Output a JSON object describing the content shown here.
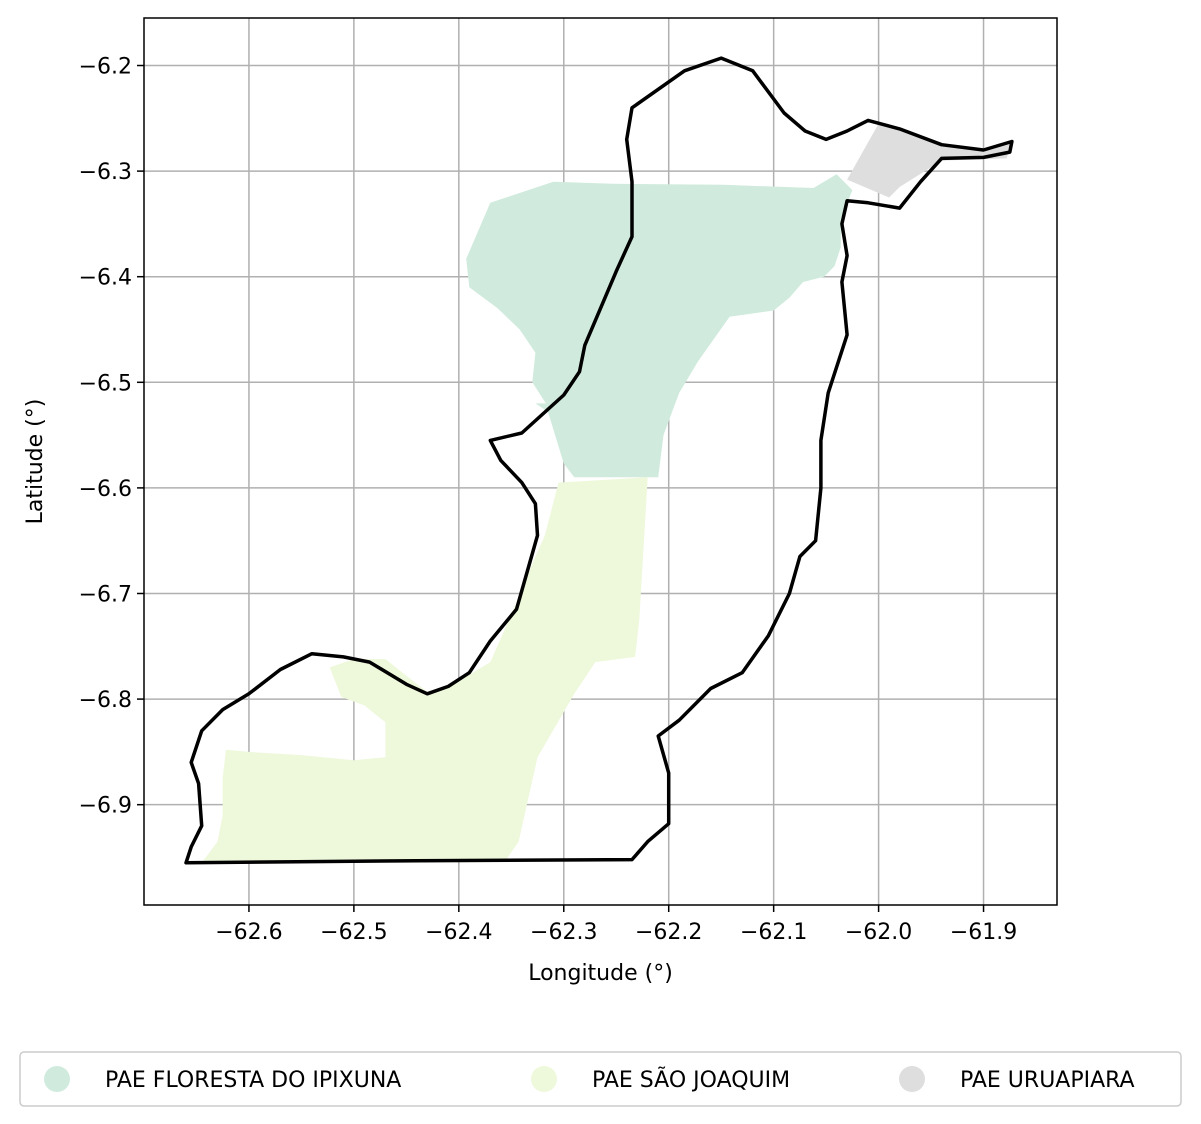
{
  "chart_data": {
    "type": "map",
    "xlabel": "Longitude (°)",
    "ylabel": "Latitude (°)",
    "xlim": [
      -62.7,
      -61.83
    ],
    "ylim": [
      -6.995,
      -6.155
    ],
    "xticks": [
      -62.6,
      -62.5,
      -62.4,
      -62.3,
      -62.2,
      -62.1,
      -62.0,
      -61.9
    ],
    "xtick_labels": [
      "−62.6",
      "−62.5",
      "−62.4",
      "−62.3",
      "−62.2",
      "−62.1",
      "−62.0",
      "−61.9"
    ],
    "yticks": [
      -6.2,
      -6.3,
      -6.4,
      -6.5,
      -6.6,
      -6.7,
      -6.8,
      -6.9
    ],
    "ytick_labels": [
      "−6.2",
      "−6.3",
      "−6.4",
      "−6.5",
      "−6.6",
      "−6.7",
      "−6.8",
      "−6.9"
    ],
    "grid": true,
    "legend_position": "bottom",
    "legend": [
      {
        "label": "PAE FLORESTA DO IPIXUNA",
        "color": "#d0ebdd"
      },
      {
        "label": "PAE SÃO JOAQUIM",
        "color": "#eef8db"
      },
      {
        "label": "PAE URUAPIARA",
        "color": "#dedede"
      }
    ],
    "regions": [
      {
        "name": "PAE FLORESTA DO IPIXUNA",
        "color": "#d0ebdd",
        "coords": [
          [
            -62.253,
            -6.312
          ],
          [
            -62.148,
            -6.313
          ],
          [
            -62.062,
            -6.316
          ],
          [
            -62.04,
            -6.303
          ],
          [
            -62.025,
            -6.318
          ],
          [
            -62.036,
            -6.345
          ],
          [
            -62.036,
            -6.372
          ],
          [
            -62.042,
            -6.39
          ],
          [
            -62.052,
            -6.4
          ],
          [
            -62.072,
            -6.405
          ],
          [
            -62.085,
            -6.42
          ],
          [
            -62.1,
            -6.432
          ],
          [
            -62.142,
            -6.438
          ],
          [
            -62.172,
            -6.48
          ],
          [
            -62.19,
            -6.51
          ],
          [
            -62.205,
            -6.55
          ],
          [
            -62.21,
            -6.59
          ],
          [
            -62.29,
            -6.59
          ],
          [
            -62.3,
            -6.577
          ],
          [
            -62.315,
            -6.528
          ],
          [
            -62.327,
            -6.52
          ],
          [
            -62.317,
            -6.52
          ],
          [
            -62.33,
            -6.5
          ],
          [
            -62.327,
            -6.472
          ],
          [
            -62.342,
            -6.45
          ],
          [
            -62.363,
            -6.43
          ],
          [
            -62.39,
            -6.41
          ],
          [
            -62.393,
            -6.383
          ],
          [
            -62.37,
            -6.33
          ],
          [
            -62.31,
            -6.31
          ]
        ]
      },
      {
        "name": "PAE SÃO JOAQUIM",
        "color": "#eef8db",
        "coords": [
          [
            -62.645,
            -6.955
          ],
          [
            -62.63,
            -6.935
          ],
          [
            -62.625,
            -6.91
          ],
          [
            -62.625,
            -6.875
          ],
          [
            -62.622,
            -6.848
          ],
          [
            -62.6,
            -6.85
          ],
          [
            -62.55,
            -6.853
          ],
          [
            -62.5,
            -6.858
          ],
          [
            -62.47,
            -6.855
          ],
          [
            -62.47,
            -6.822
          ],
          [
            -62.49,
            -6.806
          ],
          [
            -62.512,
            -6.798
          ],
          [
            -62.523,
            -6.77
          ],
          [
            -62.5,
            -6.762
          ],
          [
            -62.47,
            -6.762
          ],
          [
            -62.45,
            -6.778
          ],
          [
            -62.43,
            -6.793
          ],
          [
            -62.4,
            -6.783
          ],
          [
            -62.37,
            -6.765
          ],
          [
            -62.35,
            -6.72
          ],
          [
            -62.327,
            -6.665
          ],
          [
            -62.318,
            -6.645
          ],
          [
            -62.305,
            -6.595
          ],
          [
            -62.22,
            -6.59
          ],
          [
            -62.228,
            -6.725
          ],
          [
            -62.232,
            -6.76
          ],
          [
            -62.27,
            -6.765
          ],
          [
            -62.29,
            -6.795
          ],
          [
            -62.325,
            -6.855
          ],
          [
            -62.343,
            -6.935
          ],
          [
            -62.355,
            -6.952
          ]
        ]
      },
      {
        "name": "PAE URUAPIARA",
        "color": "#dedede",
        "coords": [
          [
            -62.03,
            -6.308
          ],
          [
            -61.99,
            -6.325
          ],
          [
            -61.98,
            -6.315
          ],
          [
            -61.94,
            -6.29
          ],
          [
            -61.878,
            -6.288
          ],
          [
            -61.873,
            -6.272
          ],
          [
            -61.9,
            -6.28
          ],
          [
            -61.94,
            -6.275
          ],
          [
            -61.98,
            -6.26
          ],
          [
            -62.0,
            -6.255
          ]
        ]
      }
    ],
    "outline": [
      [
        -62.66,
        -6.955
      ],
      [
        -62.44,
        -6.953
      ],
      [
        -62.235,
        -6.952
      ],
      [
        -62.22,
        -6.935
      ],
      [
        -62.2,
        -6.918
      ],
      [
        -62.2,
        -6.87
      ],
      [
        -62.21,
        -6.835
      ],
      [
        -62.19,
        -6.82
      ],
      [
        -62.16,
        -6.79
      ],
      [
        -62.13,
        -6.775
      ],
      [
        -62.105,
        -6.74
      ],
      [
        -62.085,
        -6.7
      ],
      [
        -62.075,
        -6.665
      ],
      [
        -62.06,
        -6.65
      ],
      [
        -62.055,
        -6.6
      ],
      [
        -62.055,
        -6.555
      ],
      [
        -62.048,
        -6.51
      ],
      [
        -62.03,
        -6.455
      ],
      [
        -62.035,
        -6.405
      ],
      [
        -62.03,
        -6.38
      ],
      [
        -62.035,
        -6.35
      ],
      [
        -62.03,
        -6.328
      ],
      [
        -62.01,
        -6.33
      ],
      [
        -61.98,
        -6.335
      ],
      [
        -61.96,
        -6.31
      ],
      [
        -61.94,
        -6.288
      ],
      [
        -61.9,
        -6.287
      ],
      [
        -61.875,
        -6.282
      ],
      [
        -61.873,
        -6.272
      ],
      [
        -61.9,
        -6.28
      ],
      [
        -61.94,
        -6.275
      ],
      [
        -61.98,
        -6.26
      ],
      [
        -62.01,
        -6.252
      ],
      [
        -62.03,
        -6.262
      ],
      [
        -62.05,
        -6.27
      ],
      [
        -62.07,
        -6.262
      ],
      [
        -62.09,
        -6.245
      ],
      [
        -62.12,
        -6.205
      ],
      [
        -62.15,
        -6.193
      ],
      [
        -62.185,
        -6.205
      ],
      [
        -62.235,
        -6.24
      ],
      [
        -62.24,
        -6.27
      ],
      [
        -62.235,
        -6.31
      ],
      [
        -62.235,
        -6.362
      ],
      [
        -62.25,
        -6.395
      ],
      [
        -62.28,
        -6.465
      ],
      [
        -62.285,
        -6.49
      ],
      [
        -62.3,
        -6.512
      ],
      [
        -62.34,
        -6.548
      ],
      [
        -62.37,
        -6.555
      ],
      [
        -62.36,
        -6.574
      ],
      [
        -62.34,
        -6.595
      ],
      [
        -62.327,
        -6.615
      ],
      [
        -62.325,
        -6.645
      ],
      [
        -62.335,
        -6.68
      ],
      [
        -62.345,
        -6.715
      ],
      [
        -62.37,
        -6.745
      ],
      [
        -62.39,
        -6.775
      ],
      [
        -62.41,
        -6.788
      ],
      [
        -62.43,
        -6.795
      ],
      [
        -62.45,
        -6.786
      ],
      [
        -62.485,
        -6.765
      ],
      [
        -62.51,
        -6.76
      ],
      [
        -62.54,
        -6.757
      ],
      [
        -62.57,
        -6.772
      ],
      [
        -62.6,
        -6.795
      ],
      [
        -62.625,
        -6.81
      ],
      [
        -62.645,
        -6.83
      ],
      [
        -62.655,
        -6.86
      ],
      [
        -62.648,
        -6.88
      ],
      [
        -62.645,
        -6.92
      ],
      [
        -62.655,
        -6.94
      ]
    ]
  }
}
